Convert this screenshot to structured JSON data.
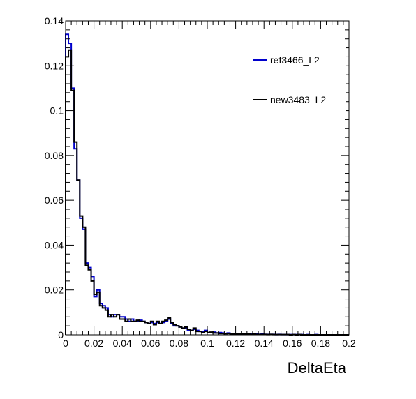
{
  "chart_data": {
    "type": "line",
    "title": "",
    "xlabel": "DeltaEta",
    "ylabel": "",
    "xlim": [
      0,
      0.2
    ],
    "ylim": [
      0,
      0.14
    ],
    "bin_width": 0.002,
    "grid": false,
    "legend_position": "top-right",
    "x_ticks": [
      "0",
      "0.02",
      "0.04",
      "0.06",
      "0.08",
      "0.1",
      "0.12",
      "0.14",
      "0.16",
      "0.18",
      "0.2"
    ],
    "y_ticks": [
      "0",
      "0.02",
      "0.04",
      "0.06",
      "0.08",
      "0.1",
      "0.12",
      "0.14"
    ],
    "series": [
      {
        "name": "ref3466_L2",
        "color": "#0000cc",
        "values": [
          0.134,
          0.13,
          0.11,
          0.083,
          0.069,
          0.052,
          0.047,
          0.032,
          0.03,
          0.026,
          0.017,
          0.02,
          0.014,
          0.013,
          0.012,
          0.009,
          0.008,
          0.009,
          0.009,
          0.008,
          0.008,
          0.007,
          0.006,
          0.007,
          0.006,
          0.006,
          0.0065,
          0.006,
          0.0055,
          0.005,
          0.0055,
          0.005,
          0.0055,
          0.005,
          0.0055,
          0.006,
          0.007,
          0.005,
          0.004,
          0.004,
          0.0035,
          0.003,
          0.003,
          0.002,
          0.002,
          0.0025,
          0.002,
          0.0015,
          0.0015,
          0.002,
          0.001,
          0.001,
          0.0012,
          0.0008,
          0.001,
          0.0008,
          0.0006,
          0.0008,
          0.0005,
          0.0006,
          0.0005,
          0.0005,
          0.0004,
          0.0004,
          0.0003,
          0.0003,
          0.0004,
          0.0003,
          0.0002,
          0.0003,
          0.0002,
          0.0002,
          0.0002,
          0.0002,
          0.0001,
          0.0002,
          0.0001,
          0.0001,
          0.0001,
          0.0001,
          0.0001,
          0.0001,
          0.0001,
          0.0001,
          0.0,
          0.0001,
          0.0,
          0.0,
          0.0001,
          0.0,
          0.0,
          0.0,
          0.0,
          0.0,
          0.0,
          0.0,
          0.0,
          0.0,
          0.0,
          0.0
        ]
      },
      {
        "name": "new3483_L2",
        "color": "#000000",
        "values": [
          0.124,
          0.127,
          0.109,
          0.086,
          0.069,
          0.053,
          0.048,
          0.031,
          0.029,
          0.024,
          0.018,
          0.019,
          0.013,
          0.012,
          0.011,
          0.008,
          0.009,
          0.008,
          0.009,
          0.007,
          0.007,
          0.006,
          0.007,
          0.006,
          0.006,
          0.0065,
          0.006,
          0.006,
          0.0055,
          0.005,
          0.006,
          0.0045,
          0.006,
          0.005,
          0.006,
          0.0065,
          0.0075,
          0.0055,
          0.0045,
          0.004,
          0.0035,
          0.003,
          0.0035,
          0.0025,
          0.002,
          0.003,
          0.0015,
          0.0015,
          0.001,
          0.0015,
          0.001,
          0.0012,
          0.0008,
          0.0008,
          0.0006,
          0.0006,
          0.0005,
          0.0006,
          0.0004,
          0.0004,
          0.0004,
          0.0003,
          0.0003,
          0.0004,
          0.0003,
          0.0002,
          0.0003,
          0.0002,
          0.0002,
          0.0002,
          0.0002,
          0.0001,
          0.0002,
          0.0001,
          0.0001,
          0.0001,
          0.0001,
          0.0001,
          0.0001,
          0.0,
          0.0001,
          0.0,
          0.0001,
          0.0,
          0.0,
          0.0,
          0.0,
          0.0,
          0.0,
          0.0,
          0.0,
          0.0,
          0.0,
          0.0,
          0.0,
          0.0,
          0.0,
          0.0,
          0.0,
          0.0
        ]
      }
    ]
  }
}
